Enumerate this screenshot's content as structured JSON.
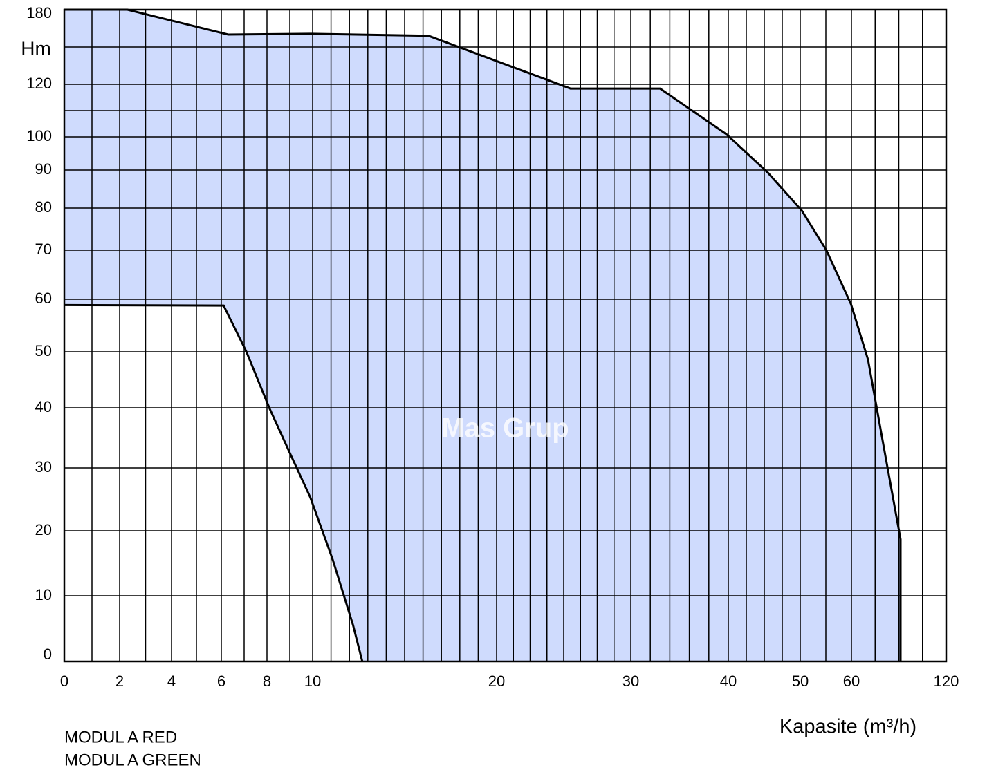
{
  "chart_data": {
    "type": "envelope",
    "y_label": "Hm",
    "x_label": "Kapasite (m³/h)",
    "labels": [
      "MODUL A RED",
      "MODUL A GREEN"
    ],
    "watermark": "Mas Grup",
    "fill": "#cfdbfd",
    "grid": true,
    "xlim": [
      0,
      120
    ],
    "ylim": [
      0,
      180
    ],
    "xticks": [
      0,
      2,
      4,
      6,
      8,
      10,
      20,
      30,
      40,
      50,
      60,
      120
    ],
    "yticks": [
      0,
      10,
      20,
      30,
      40,
      50,
      60,
      70,
      80,
      90,
      100,
      120,
      180
    ],
    "series": [
      {
        "color": "#000000",
        "x": [
          0,
          2.3,
          6.3,
          9.9,
          16.3,
          25.5,
          33,
          39.8,
          45.5,
          50.3,
          55.1,
          59.9,
          70.5,
          81.5,
          91.1,
          91.1
        ],
        "values": [
          180,
          180,
          160,
          160.6,
          159,
          118.4,
          118.4,
          101,
          89.3,
          79.4,
          70,
          59.1,
          48.6,
          32,
          18.7,
          0
        ]
      },
      {
        "color": "#000000",
        "x": [
          0,
          6.1,
          7.1,
          8.1,
          9,
          9.9,
          11.1,
          12.2,
          12.7
        ],
        "values": [
          58.9,
          58.8,
          50,
          40,
          32.5,
          25.3,
          15.5,
          5.5,
          0
        ]
      }
    ]
  }
}
